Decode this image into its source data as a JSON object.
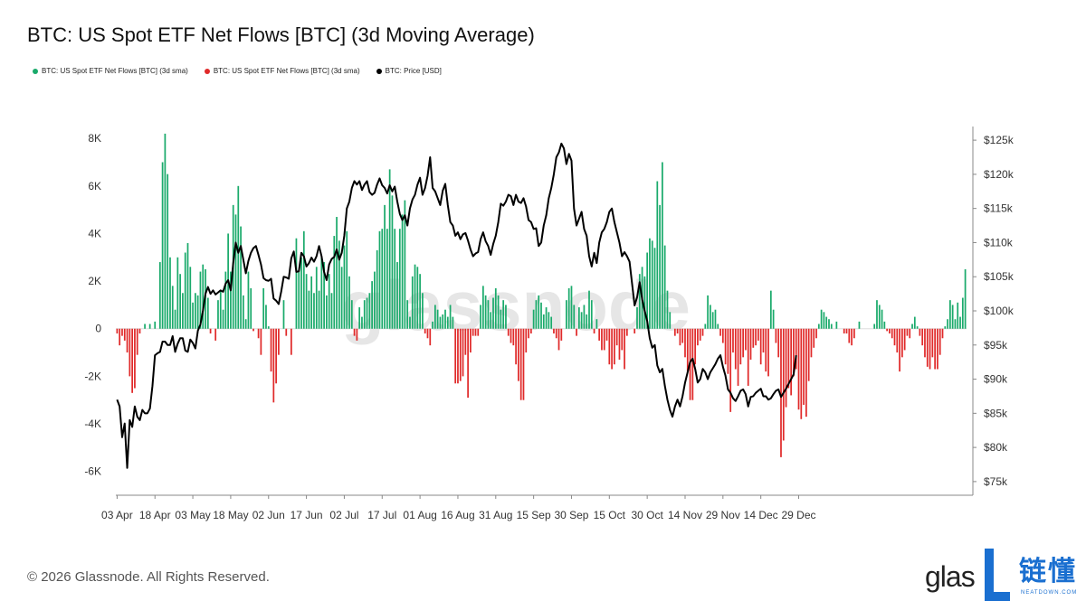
{
  "title": "BTC: US Spot ETF Net Flows [BTC] (3d Moving Average)",
  "legend": [
    {
      "label": "BTC: US Spot ETF Net Flows [BTC] (3d sma)",
      "color": "#1aaa6b"
    },
    {
      "label": "BTC: US Spot ETF Net Flows [BTC] (3d sma)",
      "color": "#e02a2a"
    },
    {
      "label": "BTC: Price [USD]",
      "color": "#000000"
    }
  ],
  "footer": "© 2026 Glassnode. All Rights Reserved.",
  "brand": "glas",
  "watermark": "glassnode",
  "stamp": {
    "cn": "链懂",
    "en": "NEATDOWN.COM",
    "color": "#1a6fd0"
  },
  "colors": {
    "positive": "#1aaa6b",
    "negative": "#e02a2a",
    "price": "#000000",
    "axis": "#888888"
  },
  "chart_data": {
    "type": "bar",
    "x_tick_labels": [
      "03 Apr",
      "18 Apr",
      "03 May",
      "18 May",
      "02 Jun",
      "17 Jun",
      "02 Jul",
      "17 Jul",
      "01 Aug",
      "16 Aug",
      "31 Aug",
      "15 Sep",
      "30 Sep",
      "15 Oct",
      "30 Oct",
      "14 Nov",
      "29 Nov",
      "14 Dec",
      "29 Dec"
    ],
    "ylim_left": [
      -7000,
      8500
    ],
    "y_ticks_left": [
      -6000,
      -4000,
      -2000,
      0,
      2000,
      4000,
      6000,
      8000
    ],
    "y_tick_labels_left": [
      "-6K",
      "-4K",
      "-2K",
      "0",
      "2K",
      "4K",
      "6K",
      "8K"
    ],
    "ylim_right": [
      73000,
      127000
    ],
    "y_ticks_right": [
      75000,
      80000,
      85000,
      90000,
      95000,
      100000,
      105000,
      110000,
      115000,
      120000,
      125000
    ],
    "y_tick_labels_right": [
      "$75k",
      "$80k",
      "$85k",
      "$90k",
      "$95k",
      "$100k",
      "$105k",
      "$110k",
      "$115k",
      "$120k",
      "$125k"
    ],
    "series": [
      {
        "name": "BTC: US Spot ETF Net Flows [BTC] (3d sma)",
        "axis": "left",
        "values": [
          -200,
          -700,
          -300,
          -500,
          -1000,
          -2000,
          -2700,
          -2500,
          -1100,
          -200,
          0,
          200,
          0,
          200,
          0,
          300,
          0,
          2800,
          7000,
          8200,
          6500,
          3000,
          1800,
          800,
          3000,
          2300,
          1500,
          3200,
          3600,
          2600,
          1100,
          1500,
          1400,
          2400,
          2700,
          2500,
          1300,
          -200,
          0,
          -500,
          1200,
          1600,
          800,
          2400,
          4000,
          2400,
          5200,
          4800,
          6000,
          4300,
          1400,
          400,
          2400,
          1700,
          -100,
          0,
          -400,
          -1100,
          1700,
          1000,
          100,
          -1800,
          -3100,
          -2300,
          -1100,
          0,
          1200,
          -300,
          0,
          -1100,
          0,
          3800,
          2400,
          3000,
          4100,
          2300,
          1600,
          2200,
          1500,
          2600,
          1600,
          3000,
          2800,
          1400,
          2300,
          1500,
          3900,
          4700,
          3700,
          2600,
          3500,
          4100,
          2200,
          1200,
          -300,
          -500,
          900,
          500,
          1200,
          1300,
          1500,
          2000,
          2400,
          3300,
          4100,
          4200,
          5200,
          4200,
          6700,
          5600,
          4200,
          2800,
          4200,
          4800,
          5400,
          1200,
          500,
          2200,
          2700,
          2600,
          2300,
          1500,
          -200,
          -400,
          -700,
          300,
          1000,
          800,
          500,
          600,
          800,
          500,
          1000,
          500,
          -2300,
          -2300,
          -2200,
          -2000,
          -1100,
          -2900,
          -1000,
          -300,
          -300,
          -300,
          1000,
          1800,
          1400,
          1200,
          700,
          1300,
          1700,
          1400,
          800,
          1200,
          1000,
          -300,
          -600,
          -700,
          -1500,
          -2200,
          -3000,
          -3000,
          -1000,
          -400,
          -200,
          800,
          1200,
          1400,
          1100,
          600,
          900,
          700,
          500,
          -200,
          -400,
          -900,
          -500,
          0,
          1200,
          1700,
          1800,
          1000,
          -300,
          900,
          700,
          1000,
          600,
          1600,
          1200,
          -200,
          400,
          -500,
          -900,
          -900,
          -500,
          -1500,
          -1700,
          -1500,
          -700,
          -1300,
          -900,
          -1700,
          -300,
          0,
          0,
          -200,
          900,
          2300,
          2600,
          2200,
          3200,
          3800,
          3700,
          3400,
          6200,
          5200,
          7000,
          3500,
          1600,
          700,
          0,
          -300,
          -200,
          -700,
          -600,
          -1200,
          -1800,
          -3000,
          -3000,
          -1500,
          -700,
          -500,
          -300,
          200,
          1400,
          1000,
          700,
          800,
          200,
          -300,
          -600,
          -1500,
          -1900,
          -3500,
          -1000,
          -1700,
          -2400,
          -1500,
          -1200,
          -900,
          -2400,
          -1300,
          -800,
          -700,
          -500,
          -1500,
          -1000,
          -1800,
          -2000,
          1600,
          800,
          -600,
          -1200,
          -5400,
          -4700,
          -3300,
          -2500,
          -2800,
          -2000,
          -1700,
          -3400,
          -3800,
          -3200,
          -3700,
          -2200,
          -1200,
          -800,
          -400,
          200,
          800,
          700,
          500,
          400,
          200,
          0,
          300,
          0,
          0,
          -200,
          -200,
          -600,
          -700,
          -400,
          0,
          300,
          0,
          0,
          0,
          0,
          0,
          200,
          1200,
          1000,
          800,
          300,
          -100,
          -200,
          -400,
          -700,
          -1000,
          -1800,
          -1200,
          -900,
          -300,
          -400,
          200,
          500,
          100,
          -300,
          -700,
          -1200,
          -1600,
          -1700,
          -1200,
          -1700,
          -1700,
          -1100,
          -400,
          100,
          400,
          1200,
          1000,
          400,
          1100,
          500,
          1300,
          2500
        ]
      },
      {
        "name": "BTC: Price [USD]",
        "axis": "right",
        "values": [
          87000,
          86000,
          81500,
          83500,
          77000,
          84000,
          83000,
          86000,
          84500,
          84000,
          85500,
          85000,
          85000,
          85700,
          89000,
          93500,
          93800,
          94000,
          95500,
          95500,
          95000,
          95000,
          96300,
          94000,
          95200,
          96000,
          96000,
          94200,
          94000,
          95800,
          95300,
          94500,
          97100,
          98000,
          100000,
          102500,
          103500,
          102500,
          103000,
          102400,
          102700,
          103000,
          102800,
          104000,
          104500,
          103000,
          107000,
          110000,
          108500,
          109500,
          107500,
          105500,
          107300,
          108500,
          109200,
          109500,
          108200,
          106800,
          104800,
          104500,
          104400,
          104700,
          101800,
          101500,
          101000,
          102800,
          105000,
          104900,
          104700,
          107700,
          108700,
          105700,
          105800,
          108500,
          108000,
          106500,
          107000,
          107800,
          107200,
          108000,
          109500,
          108000,
          105700,
          104500,
          106800,
          107600,
          107900,
          109000,
          107500,
          108500,
          111000,
          115000,
          116000,
          118000,
          119000,
          118500,
          119000,
          117700,
          118500,
          119000,
          117400,
          117000,
          117300,
          118500,
          119400,
          118400,
          118000,
          117200,
          118400,
          117500,
          118200,
          116000,
          114200,
          113300,
          114000,
          112500,
          115000,
          116300,
          117000,
          118500,
          119500,
          117000,
          118000,
          119800,
          122500,
          118000,
          117500,
          116500,
          115500,
          117600,
          118600,
          115500,
          113000,
          112500,
          111000,
          111500,
          110500,
          111200,
          111400,
          110300,
          109000,
          108000,
          108400,
          108600,
          110500,
          111500,
          110200,
          109500,
          108200,
          109800,
          111000,
          113000,
          115700,
          115400,
          116000,
          117000,
          116800,
          115500,
          117000,
          116000,
          115800,
          116500,
          115300,
          113300,
          113000,
          112000,
          112100,
          109500,
          110000,
          112500,
          114000,
          116500,
          118000,
          120000,
          122500,
          123200,
          124500,
          123800,
          121500,
          123000,
          122000,
          115000,
          112500,
          113500,
          114500,
          112000,
          111000,
          108000,
          106500,
          108500,
          107000,
          110000,
          111500,
          112000,
          113000,
          114500,
          115000,
          113000,
          111500,
          110000,
          108000,
          108600,
          108000,
          107200,
          104000,
          100800,
          102000,
          104200,
          101700,
          100000,
          98500,
          96000,
          94600,
          95000,
          92000,
          91000,
          91500,
          89000,
          87000,
          85500,
          84500,
          86000,
          87000,
          86000,
          87500,
          89500,
          91000,
          92500,
          93000,
          91500,
          89500,
          90000,
          91500,
          91000,
          90000,
          91000,
          91600,
          92200,
          93000,
          93500,
          91800,
          90500,
          88500,
          88000,
          87200,
          86800,
          87500,
          88300,
          88500,
          87800,
          86000,
          87400,
          87500,
          88000,
          88300,
          88600,
          87500,
          87500,
          87000,
          87200,
          87800,
          88300,
          88500,
          87400,
          88000,
          88600,
          89300,
          90000,
          90700,
          93500
        ]
      }
    ],
    "annotations": [
      "glassnode"
    ]
  }
}
